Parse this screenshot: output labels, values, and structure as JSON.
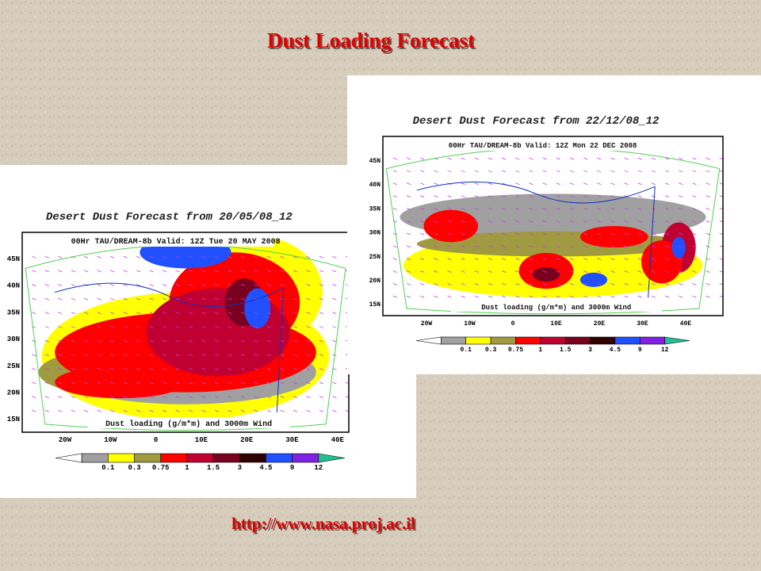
{
  "title": "Dust Loading Forecast",
  "url": "http://www.nasa.proj.ac.il",
  "maps": [
    {
      "title": "Desert Dust Forecast from 20/05/08_12",
      "subtitle": "00Hr TAU/DREAM-8b Valid: 12Z Tue 20 MAY 2008",
      "caption": "Dust loading (g/m*m) and 3000m Wind",
      "lat_labels": [
        "45N",
        "40N",
        "35N",
        "30N",
        "25N",
        "20N",
        "15N"
      ],
      "lon_labels": [
        "20W",
        "10W",
        "0",
        "10E",
        "20E",
        "30E",
        "40E"
      ],
      "colorbar_labels": [
        "0.1",
        "0.3",
        "0.75",
        "1",
        "1.5",
        "3",
        "4.5",
        "9",
        "12"
      ]
    },
    {
      "title": "Desert Dust Forecast from 22/12/08_12",
      "subtitle": "00Hr TAU/DREAM-8b Valid: 12Z Mon 22 DEC 2008",
      "caption": "Dust loading (g/m*m) and 3000m Wind",
      "lat_labels": [
        "45N",
        "40N",
        "35N",
        "30N",
        "25N",
        "20N",
        "15N"
      ],
      "lon_labels": [
        "20W",
        "10W",
        "0",
        "10E",
        "20E",
        "30E",
        "40E"
      ],
      "colorbar_labels": [
        "0.1",
        "0.3",
        "0.75",
        "1",
        "1.5",
        "3",
        "4.5",
        "9",
        "12"
      ]
    }
  ]
}
